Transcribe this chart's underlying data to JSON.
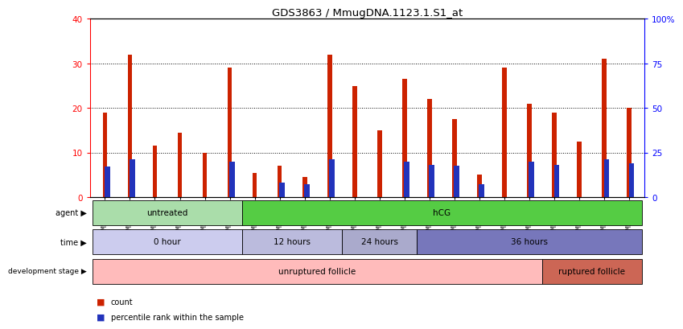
{
  "title": "GDS3863 / MmugDNA.1123.1.S1_at",
  "samples": [
    "GSM563219",
    "GSM563220",
    "GSM563221",
    "GSM563222",
    "GSM563223",
    "GSM563224",
    "GSM563225",
    "GSM563226",
    "GSM563227",
    "GSM563228",
    "GSM563229",
    "GSM563230",
    "GSM563231",
    "GSM563232",
    "GSM563233",
    "GSM563234",
    "GSM563235",
    "GSM563236",
    "GSM563237",
    "GSM563238",
    "GSM563239",
    "GSM563240"
  ],
  "counts": [
    19,
    32,
    11.5,
    14.5,
    10,
    29,
    5.5,
    7,
    4.5,
    32,
    25,
    15,
    26.5,
    22,
    17.5,
    5,
    29,
    21,
    19,
    12.5,
    31,
    20
  ],
  "percentiles": [
    17,
    21,
    null,
    null,
    null,
    20,
    null,
    8,
    7,
    21,
    null,
    null,
    20,
    18,
    17.5,
    7,
    null,
    20,
    18,
    null,
    21,
    19
  ],
  "ylim_left": [
    0,
    40
  ],
  "ylim_right": [
    0,
    100
  ],
  "yticks_left": [
    0,
    10,
    20,
    30,
    40
  ],
  "yticks_right": [
    0,
    25,
    50,
    75,
    100
  ],
  "ytick_labels_right": [
    "0",
    "25",
    "50",
    "75",
    "100%"
  ],
  "bar_color": "#cc2200",
  "percentile_color": "#2233bb",
  "agent_labels": [
    {
      "text": "untreated",
      "start": 0,
      "end": 5,
      "color": "#aaddaa"
    },
    {
      "text": "hCG",
      "start": 6,
      "end": 21,
      "color": "#55cc44"
    }
  ],
  "time_labels": [
    {
      "text": "0 hour",
      "start": 0,
      "end": 5,
      "color": "#ccccee"
    },
    {
      "text": "12 hours",
      "start": 6,
      "end": 9,
      "color": "#bbbbdd"
    },
    {
      "text": "24 hours",
      "start": 10,
      "end": 12,
      "color": "#aaaacc"
    },
    {
      "text": "36 hours",
      "start": 13,
      "end": 21,
      "color": "#7777bb"
    }
  ],
  "dev_labels": [
    {
      "text": "unruptured follicle",
      "start": 0,
      "end": 17,
      "color": "#ffbbbb"
    },
    {
      "text": "ruptured follicle",
      "start": 18,
      "end": 21,
      "color": "#cc6655"
    }
  ],
  "legend_count_color": "#cc2200",
  "legend_pct_color": "#2233bb"
}
